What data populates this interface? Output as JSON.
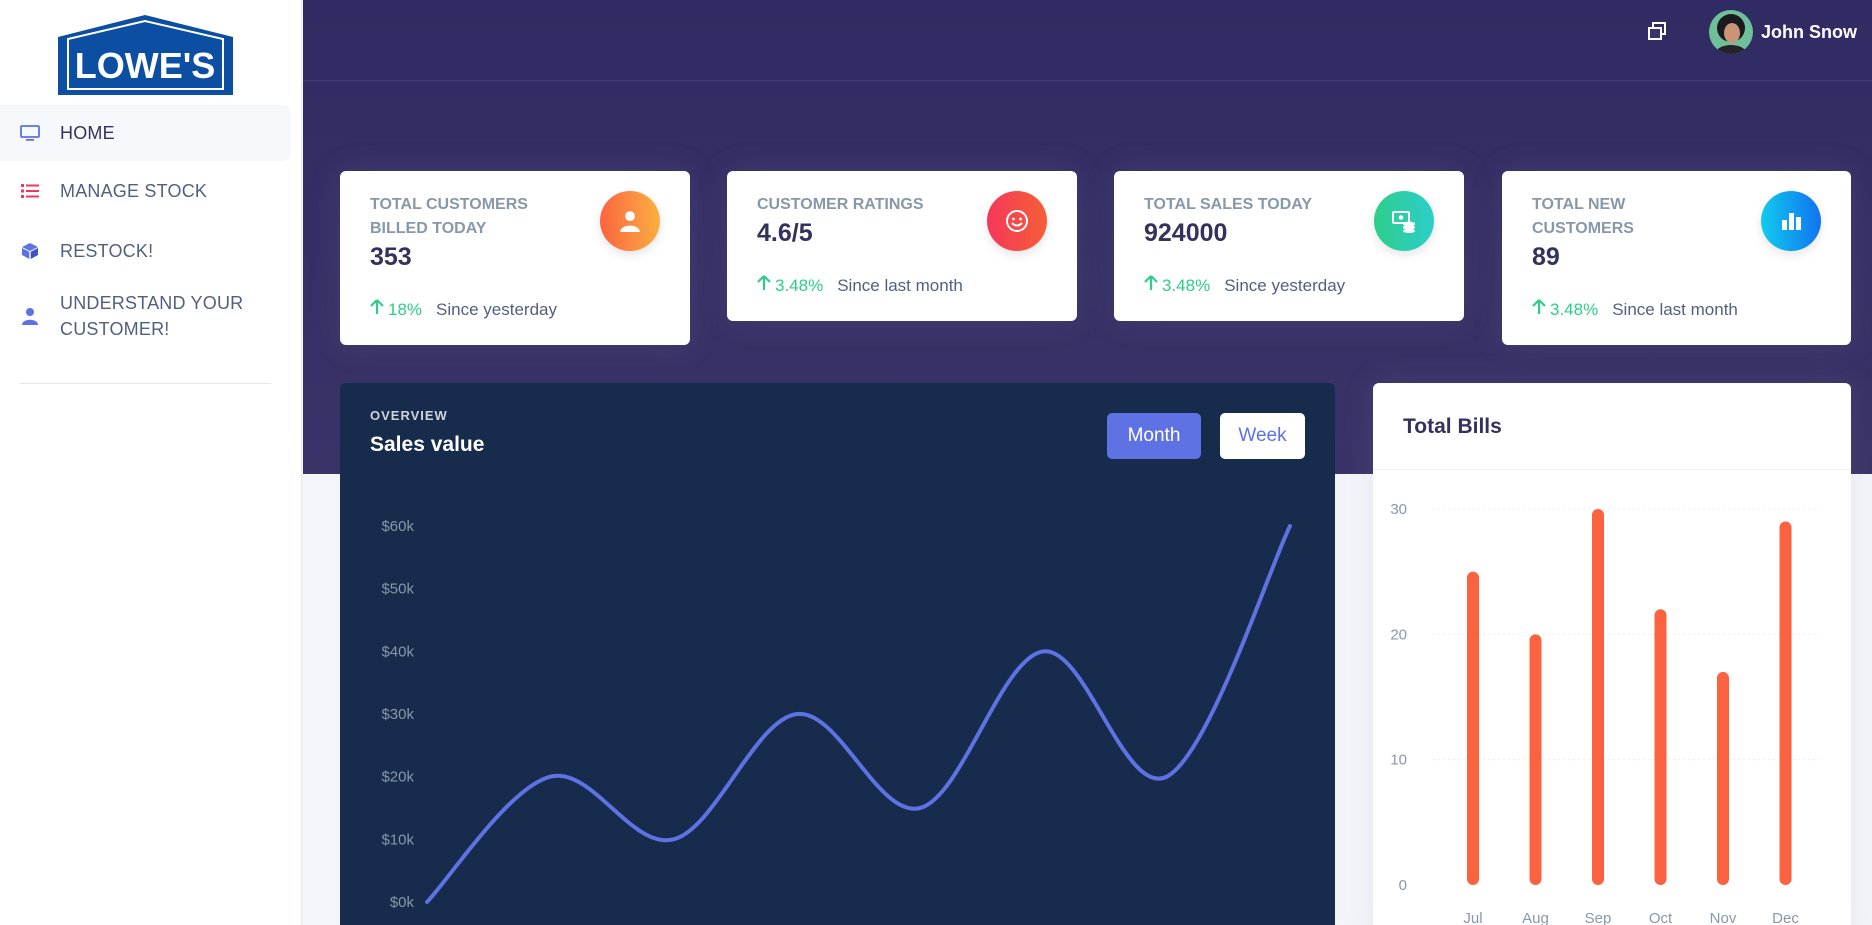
{
  "brand": {
    "logo_text": "LOWE'S"
  },
  "sidebar": {
    "items": [
      {
        "label": "HOME",
        "icon": "monitor-icon",
        "color": "#5e72e4",
        "active": true
      },
      {
        "label": "MANAGE STOCK",
        "icon": "list-icon",
        "color": "#f5365c",
        "active": false
      },
      {
        "label": "RESTOCK!",
        "icon": "box-icon",
        "color": "#5e72e4",
        "active": false
      },
      {
        "label": "UNDERSTAND YOUR CUSTOMER!",
        "icon": "user-icon",
        "color": "#5e72e4",
        "active": false
      }
    ]
  },
  "topbar": {
    "icon": "window-icon",
    "user_name": "John Snow"
  },
  "stats": [
    {
      "title": "TOTAL CUSTOMERS BILLED TODAY",
      "value": "353",
      "pct": "18%",
      "since": "Since yesterday",
      "icon": "user-icon",
      "gradient": [
        "#fb6340",
        "#fbb140"
      ]
    },
    {
      "title": "CUSTOMER RATINGS",
      "value": "4.6/5",
      "pct": "3.48%",
      "since": "Since last month",
      "icon": "smile-icon",
      "gradient": [
        "#f5365c",
        "#f56036"
      ]
    },
    {
      "title": "TOTAL SALES TODAY",
      "value": "924000",
      "pct": "3.48%",
      "since": "Since yesterday",
      "icon": "money-coins-icon",
      "gradient": [
        "#2dce89",
        "#2dcecc"
      ]
    },
    {
      "title": "TOTAL NEW CUSTOMERS",
      "value": "89",
      "pct": "3.48%",
      "since": "Since last month",
      "icon": "chart-bar-icon",
      "gradient": [
        "#11cdef",
        "#1171ef"
      ]
    }
  ],
  "sales": {
    "overline": "OVERVIEW",
    "title": "Sales value",
    "btn_month": "Month",
    "btn_week": "Week"
  },
  "bills": {
    "title": "Total Bills"
  },
  "chart_data": [
    {
      "type": "line",
      "title": "Sales value",
      "y_ticks": [
        "$0k",
        "$10k",
        "$20k",
        "$30k",
        "$40k",
        "$50k",
        "$60k"
      ],
      "ylim": [
        0,
        60
      ],
      "x": [
        0,
        1,
        2,
        3,
        4,
        5,
        6,
        7
      ],
      "series": [
        {
          "values": [
            0,
            20,
            10,
            30,
            15,
            40,
            20,
            60
          ]
        }
      ],
      "color": "#5e72e4",
      "grid": false
    },
    {
      "type": "bar",
      "title": "Total Bills",
      "categories": [
        "Jul",
        "Aug",
        "Sep",
        "Oct",
        "Nov",
        "Dec"
      ],
      "values": [
        25,
        20,
        30,
        22,
        17,
        29
      ],
      "y_ticks": [
        "0",
        "10",
        "20",
        "30"
      ],
      "ylim": [
        0,
        30
      ],
      "color": "#fb6340",
      "grid": true
    }
  ]
}
